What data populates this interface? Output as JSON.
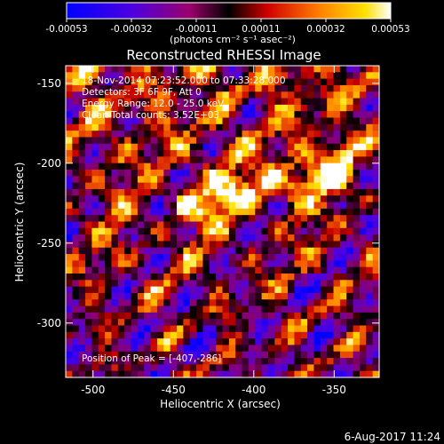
{
  "colorbar": {
    "ticks": [
      "-0.00053",
      "-0.00032",
      "-0.00011",
      "0.00011",
      "0.00032",
      "0.00053"
    ],
    "unit_label": "(photons cm⁻² s⁻¹ asec⁻²)"
  },
  "title": "Reconstructed RHESSI Image",
  "annotations": {
    "time_range": "18-Nov-2014 07:23:52.000 to 07:33:28.000",
    "detectors": "Detectors: 3F 6F 9F, Att 0",
    "energy_range": "Energy Range: 12.0 - 25.0 keV",
    "algorithm": "Clean     Total counts: 3.52E+03",
    "peak": "Position of Peak = [-407,-286]"
  },
  "footer_timestamp": "6-Aug-2017 11:24",
  "chart_data": {
    "type": "heatmap",
    "title": "Reconstructed RHESSI Image",
    "xlabel": "Heliocentric X (arcsec)",
    "ylabel": "Heliocentric Y (arcsec)",
    "xlim": [
      -517,
      -322
    ],
    "ylim": [
      -334,
      -139
    ],
    "xticks": [
      -500,
      -450,
      -400,
      -350
    ],
    "yticks": [
      -150,
      -200,
      -250,
      -300
    ],
    "xtick_labels": [
      "-500",
      "-450",
      "-400",
      "-350"
    ],
    "ytick_labels": [
      "-150",
      "-200",
      "-250",
      "-300"
    ],
    "colorbar_range": [
      -0.00053,
      0.00053
    ],
    "colormap": "hot-blue",
    "grid_cells": 48,
    "peak_position": [
      -407,
      -286
    ]
  }
}
